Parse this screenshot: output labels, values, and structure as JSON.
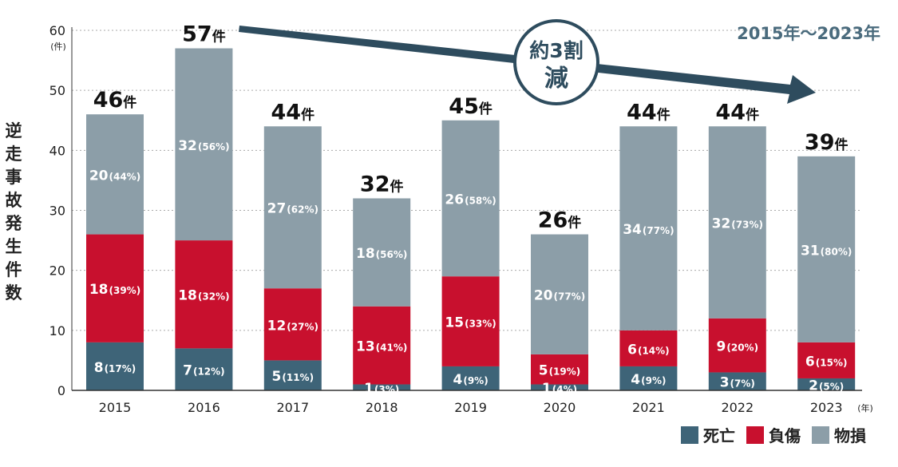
{
  "chart_data": {
    "type": "bar",
    "stacked": true,
    "ylabel": "逆走事故発生件数",
    "y_unit": "(件)",
    "x_unit": "(年)",
    "range_label": "2015年〜2023年",
    "annotation": {
      "line1": "約3割",
      "line2": "減"
    },
    "total_suffix": "件",
    "ylim": [
      0,
      60
    ],
    "yticks": [
      0,
      10,
      20,
      30,
      40,
      50,
      60
    ],
    "grid": "dotted-horizontal",
    "legend_position": "bottom-right",
    "categories": [
      "2015",
      "2016",
      "2017",
      "2018",
      "2019",
      "2020",
      "2021",
      "2022",
      "2023"
    ],
    "totals": [
      46,
      57,
      44,
      32,
      45,
      26,
      44,
      44,
      39
    ],
    "series": [
      {
        "name": "死亡",
        "color": "#3e6478",
        "values": [
          8,
          7,
          5,
          1,
          4,
          1,
          4,
          3,
          2
        ],
        "percent_labels": [
          "(17%)",
          "(12%)",
          "(11%)",
          "(3%)",
          "(9%)",
          "(4%)",
          "(9%)",
          "(7%)",
          "(5%)"
        ]
      },
      {
        "name": "負傷",
        "color": "#c8102e",
        "values": [
          18,
          18,
          12,
          13,
          15,
          5,
          6,
          9,
          6
        ],
        "percent_labels": [
          "(39%)",
          "(32%)",
          "(27%)",
          "(41%)",
          "(33%)",
          "(19%)",
          "(14%)",
          "(20%)",
          "(15%)"
        ]
      },
      {
        "name": "物損",
        "color": "#8c9ea8",
        "values": [
          20,
          32,
          27,
          18,
          26,
          20,
          34,
          32,
          31
        ],
        "percent_labels": [
          "(44%)",
          "(56%)",
          "(62%)",
          "(56%)",
          "(58%)",
          "(77%)",
          "(77%)",
          "(73%)",
          "(80%)"
        ]
      }
    ]
  },
  "arrow_color": "#2e4c5e"
}
